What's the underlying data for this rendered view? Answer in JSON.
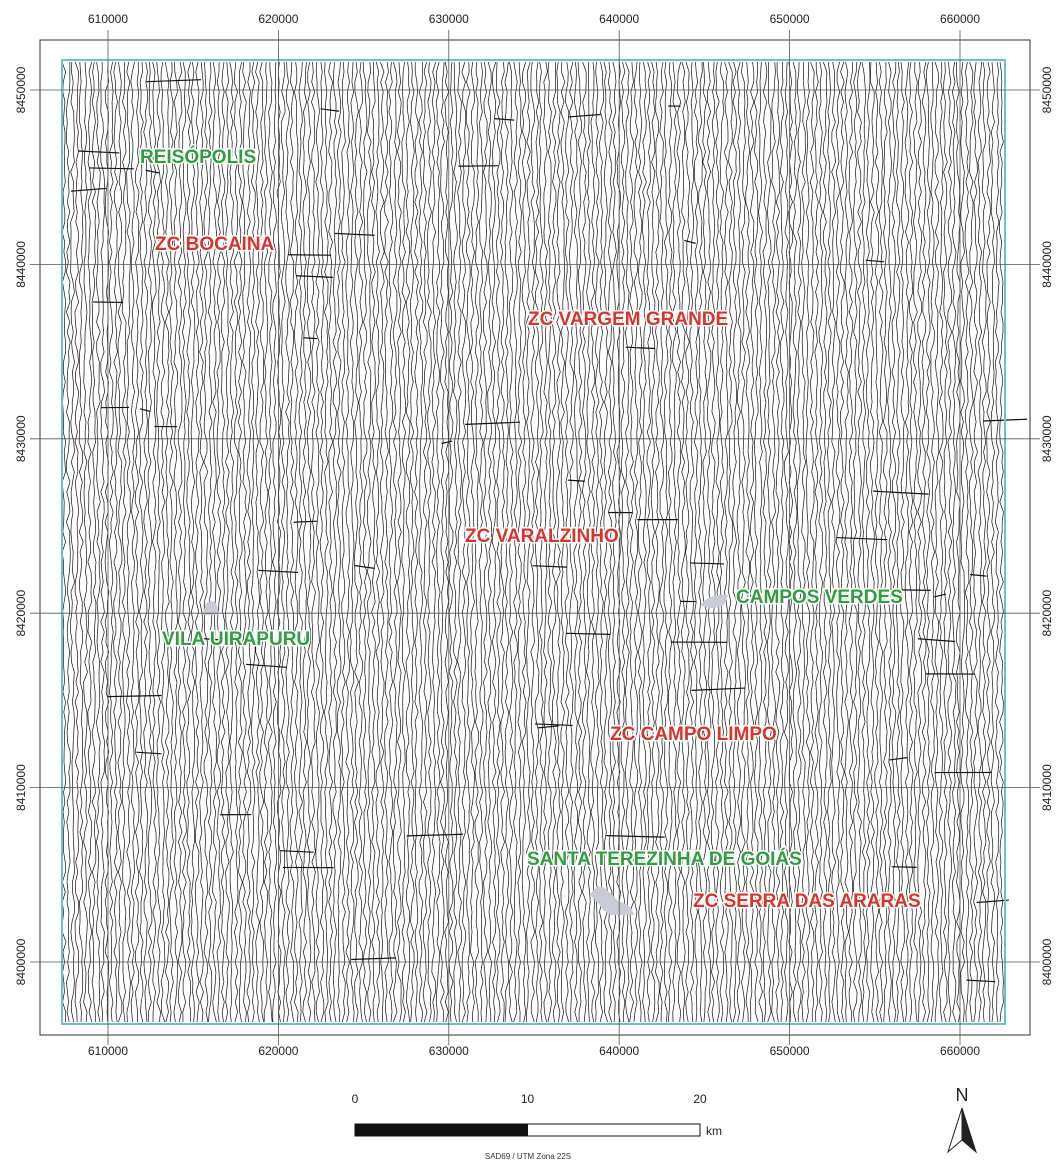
{
  "map": {
    "x_ticks": [
      610000,
      620000,
      630000,
      640000,
      650000,
      660000
    ],
    "y_ticks": [
      8400000,
      8410000,
      8420000,
      8430000,
      8440000,
      8450000
    ],
    "places": [
      {
        "label": "REISÓPOLIS",
        "color": "#2e9e3e"
      },
      {
        "label": "ZC BOCAINA",
        "color": "#d9342b"
      },
      {
        "label": "ZC VARGEM GRANDE",
        "color": "#d9342b"
      },
      {
        "label": "ZC VARALZINHO",
        "color": "#d9342b"
      },
      {
        "label": "CAMPOS VERDES",
        "color": "#2e9e3e"
      },
      {
        "label": "VILA UIRAPURU",
        "color": "#2e9e3e"
      },
      {
        "label": "ZC CAMPO LIMPO",
        "color": "#d9342b"
      },
      {
        "label": "SANTA TEREZINHA DE GOIÁS",
        "color": "#2e9e3e"
      },
      {
        "label": "ZC SERRA DAS ARARAS",
        "color": "#d9342b"
      }
    ],
    "scale_bar": {
      "ticks": [
        0,
        10,
        20
      ],
      "unit": "km"
    },
    "projection": "SAD69 / UTM Zona 22S",
    "north": "N"
  }
}
